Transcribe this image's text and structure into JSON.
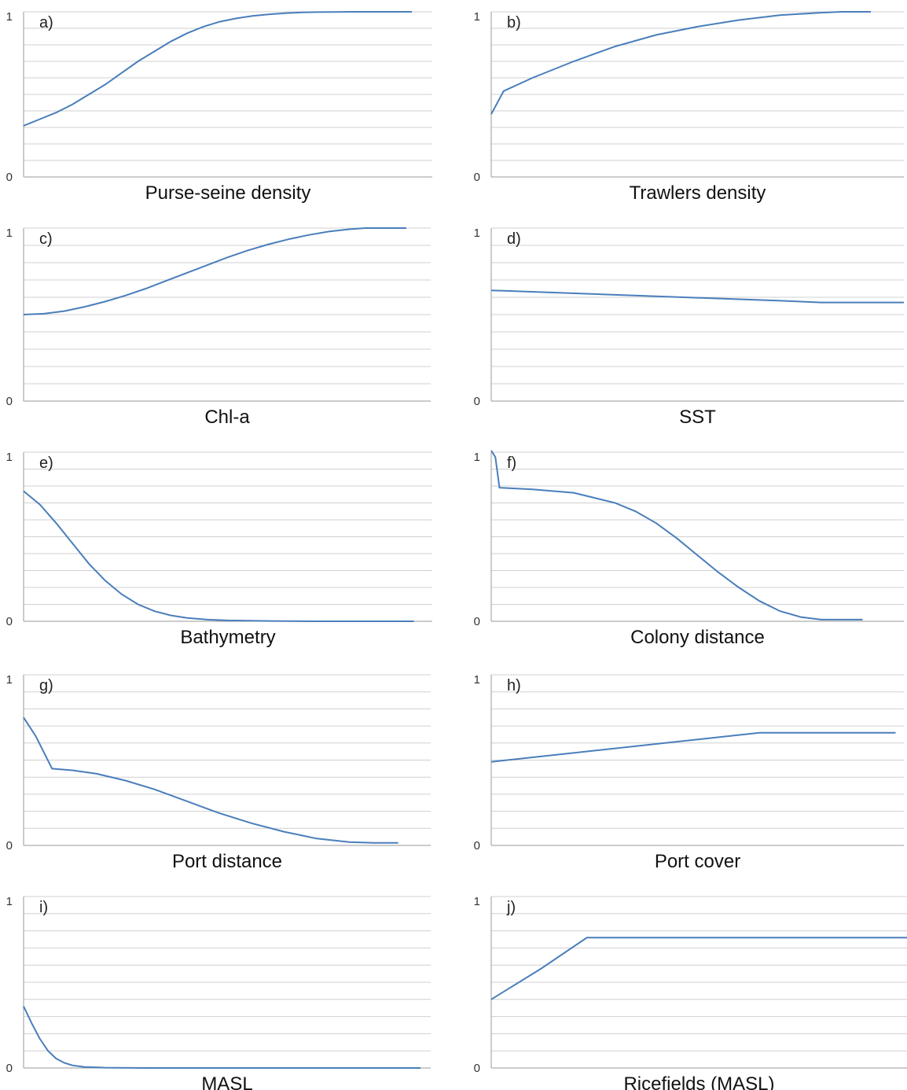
{
  "chart_data": [
    {
      "id": "a",
      "type": "line",
      "panel_label": "a)",
      "xlabel": "Purse-seine density",
      "ylim": [
        0,
        1
      ],
      "yticks": [
        "0",
        "1"
      ],
      "grid": true,
      "series": [
        {
          "x": [
            0,
            0.04,
            0.08,
            0.12,
            0.16,
            0.2,
            0.24,
            0.28,
            0.32,
            0.36,
            0.4,
            0.44,
            0.48,
            0.52,
            0.56,
            0.6,
            0.64,
            0.68,
            0.72,
            0.76,
            0.8,
            0.85,
            0.9,
            0.95
          ],
          "y": [
            0.31,
            0.35,
            0.39,
            0.44,
            0.5,
            0.56,
            0.63,
            0.7,
            0.76,
            0.82,
            0.87,
            0.91,
            0.94,
            0.96,
            0.975,
            0.985,
            0.992,
            0.996,
            0.998,
            0.999,
            1,
            1,
            1,
            1
          ]
        }
      ]
    },
    {
      "id": "b",
      "type": "line",
      "panel_label": "b)",
      "xlabel": "Trawlers density",
      "ylim": [
        0,
        1
      ],
      "yticks": [
        "0",
        "1"
      ],
      "grid": true,
      "series": [
        {
          "x": [
            0,
            0.03,
            0.1,
            0.2,
            0.3,
            0.4,
            0.5,
            0.6,
            0.7,
            0.8,
            0.85,
            0.9,
            0.92
          ],
          "y": [
            0.38,
            0.52,
            0.6,
            0.7,
            0.79,
            0.86,
            0.91,
            0.95,
            0.98,
            0.995,
            1,
            1,
            1
          ]
        }
      ]
    },
    {
      "id": "c",
      "type": "line",
      "panel_label": "c)",
      "xlabel": "Chl-a",
      "ylim": [
        0,
        1
      ],
      "yticks": [
        "0",
        "1"
      ],
      "grid": true,
      "series": [
        {
          "x": [
            0,
            0.05,
            0.1,
            0.15,
            0.2,
            0.25,
            0.3,
            0.35,
            0.4,
            0.45,
            0.5,
            0.55,
            0.6,
            0.65,
            0.7,
            0.75,
            0.8,
            0.84,
            0.88,
            0.94
          ],
          "y": [
            0.5,
            0.505,
            0.52,
            0.545,
            0.575,
            0.61,
            0.65,
            0.695,
            0.74,
            0.785,
            0.83,
            0.87,
            0.905,
            0.935,
            0.96,
            0.98,
            0.993,
            1,
            1,
            1
          ]
        }
      ]
    },
    {
      "id": "d",
      "type": "line",
      "panel_label": "d)",
      "xlabel": "SST",
      "ylim": [
        0,
        1
      ],
      "yticks": [
        "0",
        "1"
      ],
      "grid": true,
      "series": [
        {
          "x": [
            0,
            0.7,
            0.8,
            1.0
          ],
          "y": [
            0.64,
            0.58,
            0.57,
            0.57
          ]
        }
      ]
    },
    {
      "id": "e",
      "type": "line",
      "panel_label": "e)",
      "xlabel": "Bathymetry",
      "ylim": [
        0,
        1
      ],
      "yticks": [
        "0",
        "1"
      ],
      "grid": true,
      "series": [
        {
          "x": [
            0,
            0.04,
            0.08,
            0.12,
            0.16,
            0.2,
            0.24,
            0.28,
            0.32,
            0.36,
            0.4,
            0.45,
            0.5,
            0.6,
            0.7,
            0.8,
            0.9,
            0.955
          ],
          "y": [
            0.77,
            0.69,
            0.58,
            0.46,
            0.34,
            0.24,
            0.16,
            0.1,
            0.06,
            0.035,
            0.02,
            0.01,
            0.005,
            0.002,
            0,
            0,
            0,
            0
          ]
        }
      ]
    },
    {
      "id": "f",
      "type": "line",
      "panel_label": "f)",
      "xlabel": "Colony distance",
      "ylim": [
        0,
        1
      ],
      "yticks": [
        "0",
        "1"
      ],
      "grid": true,
      "series": [
        {
          "x": [
            0,
            0.01,
            0.02,
            0.1,
            0.2,
            0.3,
            0.35,
            0.4,
            0.45,
            0.5,
            0.55,
            0.6,
            0.65,
            0.7,
            0.75,
            0.8,
            0.85,
            0.9
          ],
          "y": [
            1.01,
            0.97,
            0.79,
            0.78,
            0.76,
            0.7,
            0.65,
            0.58,
            0.49,
            0.39,
            0.29,
            0.2,
            0.12,
            0.06,
            0.025,
            0.01,
            0.01,
            0.01
          ]
        }
      ]
    },
    {
      "id": "g",
      "type": "line",
      "panel_label": "g)",
      "xlabel": "Port distance",
      "ylim": [
        0,
        1
      ],
      "yticks": [
        "0",
        "1"
      ],
      "grid": true,
      "series": [
        {
          "x": [
            0,
            0.03,
            0.07,
            0.12,
            0.18,
            0.25,
            0.32,
            0.4,
            0.48,
            0.56,
            0.64,
            0.72,
            0.8,
            0.86,
            0.92
          ],
          "y": [
            0.75,
            0.64,
            0.45,
            0.44,
            0.42,
            0.38,
            0.33,
            0.26,
            0.19,
            0.13,
            0.08,
            0.04,
            0.02,
            0.015,
            0.015
          ]
        }
      ]
    },
    {
      "id": "h",
      "type": "line",
      "panel_label": "h)",
      "xlabel": "Port cover",
      "ylim": [
        0,
        1
      ],
      "yticks": [
        "0",
        "1"
      ],
      "grid": true,
      "series": [
        {
          "x": [
            0,
            0.65,
            0.75,
            0.98
          ],
          "y": [
            0.49,
            0.66,
            0.66,
            0.66
          ]
        }
      ]
    },
    {
      "id": "i",
      "type": "line",
      "panel_label": "i)",
      "xlabel": "MASL",
      "ylim": [
        0,
        1
      ],
      "yticks": [
        "0",
        "1"
      ],
      "grid": true,
      "series": [
        {
          "x": [
            0,
            0.02,
            0.04,
            0.06,
            0.08,
            0.1,
            0.12,
            0.15,
            0.2,
            0.3,
            0.5,
            0.7,
            0.9,
            0.975
          ],
          "y": [
            0.36,
            0.26,
            0.17,
            0.1,
            0.055,
            0.03,
            0.015,
            0.006,
            0.002,
            0,
            0,
            0,
            0,
            0
          ]
        }
      ]
    },
    {
      "id": "j",
      "type": "line",
      "panel_label": "j)",
      "xlabel": "Ricefields (MASL)",
      "ylim": [
        0,
        1
      ],
      "yticks": [
        "0",
        "1"
      ],
      "grid": true,
      "series": [
        {
          "x": [
            0,
            0.12,
            0.23,
            0.5,
            1.0
          ],
          "y": [
            0.4,
            0.58,
            0.76,
            0.76,
            0.76
          ]
        }
      ]
    }
  ]
}
